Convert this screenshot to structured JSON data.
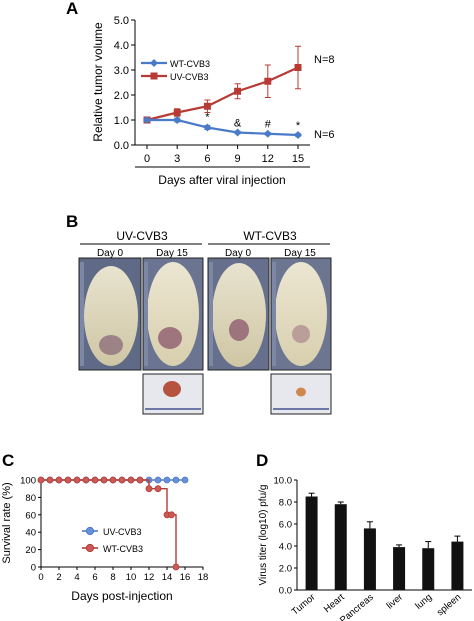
{
  "panels": {
    "a": "A",
    "b": "B",
    "c": "C",
    "d": "D"
  },
  "panel_b": {
    "groups": [
      {
        "label": "UV-CVB3",
        "days": [
          "Day 0",
          "Day 15"
        ]
      },
      {
        "label": "WT-CVB3",
        "days": [
          "Day 0",
          "Day 15"
        ]
      }
    ]
  },
  "colors": {
    "wt": "#4a7bc8",
    "uv": "#b83a35",
    "bar": "#111111"
  },
  "chart_data": [
    {
      "id": "A",
      "type": "line",
      "xlabel": "Days after viral injection",
      "ylabel": "Relative tumor volume",
      "x": [
        0,
        3,
        6,
        9,
        12,
        15
      ],
      "xlim": [
        0,
        15
      ],
      "ylim": [
        0,
        5
      ],
      "yticks": [
        "0.0",
        "1.0",
        "2.0",
        "3.0",
        "4.0",
        "5.0"
      ],
      "legend": "top-left",
      "series": [
        {
          "name": "WT-CVB3",
          "values": [
            1.0,
            1.0,
            0.7,
            0.5,
            0.45,
            0.4
          ],
          "errors": [
            0.05,
            0.08,
            0.08,
            0.05,
            0.05,
            0.05
          ],
          "color": "#4a7bc8",
          "marker": "diamond"
        },
        {
          "name": "UV-CVB3",
          "values": [
            1.0,
            1.3,
            1.55,
            2.15,
            2.55,
            3.1
          ],
          "errors": [
            0.05,
            0.15,
            0.25,
            0.3,
            0.65,
            0.85
          ],
          "color": "#b83a35",
          "marker": "square"
        }
      ],
      "annotations": [
        {
          "x": 6,
          "text": "*"
        },
        {
          "x": 9,
          "text": "&"
        },
        {
          "x": 12,
          "text": "#"
        },
        {
          "x": 15,
          "text": "*"
        }
      ],
      "n_labels": [
        {
          "series": "UV-CVB3",
          "text": "N=8"
        },
        {
          "series": "WT-CVB3",
          "text": "N=6"
        }
      ]
    },
    {
      "id": "C",
      "type": "line",
      "xlabel": "Days post-injection",
      "ylabel": "Survival rate (%)",
      "x": [
        0,
        1,
        2,
        3,
        4,
        5,
        6,
        7,
        8,
        9,
        10,
        11,
        12,
        13,
        14,
        15,
        16
      ],
      "xlim": [
        0,
        18
      ],
      "xticks": [
        0,
        2,
        4,
        6,
        8,
        10,
        12,
        14,
        16,
        18
      ],
      "ylim": [
        0,
        100
      ],
      "yticks": [
        0,
        20,
        40,
        60,
        80,
        100
      ],
      "legend": "bottom-center",
      "series": [
        {
          "name": "UV-CVB3",
          "x": [
            0,
            1,
            2,
            3,
            4,
            5,
            6,
            7,
            8,
            9,
            10,
            11,
            12,
            13,
            14,
            15,
            16
          ],
          "values": [
            100,
            100,
            100,
            100,
            100,
            100,
            100,
            100,
            100,
            100,
            100,
            100,
            100,
            100,
            100,
            100,
            100
          ],
          "color": "#4a7bc8"
        },
        {
          "name": "WT-CVB3",
          "x": [
            0,
            1,
            2,
            3,
            4,
            5,
            6,
            7,
            8,
            9,
            10,
            11,
            12,
            13,
            14,
            14.5,
            15
          ],
          "values": [
            100,
            100,
            100,
            100,
            100,
            100,
            100,
            100,
            100,
            100,
            100,
            100,
            90,
            90,
            60,
            60,
            0
          ],
          "color": "#b83a35"
        }
      ]
    },
    {
      "id": "D",
      "type": "bar",
      "ylabel": "Virus titer (log10) pfu/g",
      "categories": [
        "Tumor",
        "Heart",
        "Pancreas",
        "liver",
        "lung",
        "spleen"
      ],
      "values": [
        8.5,
        7.8,
        5.6,
        3.9,
        3.8,
        4.4
      ],
      "errors": [
        0.3,
        0.2,
        0.6,
        0.2,
        0.6,
        0.5
      ],
      "ylim": [
        0,
        10
      ],
      "yticks": [
        "0.0",
        "2.0",
        "4.0",
        "6.0",
        "8.0",
        "10.0"
      ],
      "color": "#111111"
    }
  ]
}
